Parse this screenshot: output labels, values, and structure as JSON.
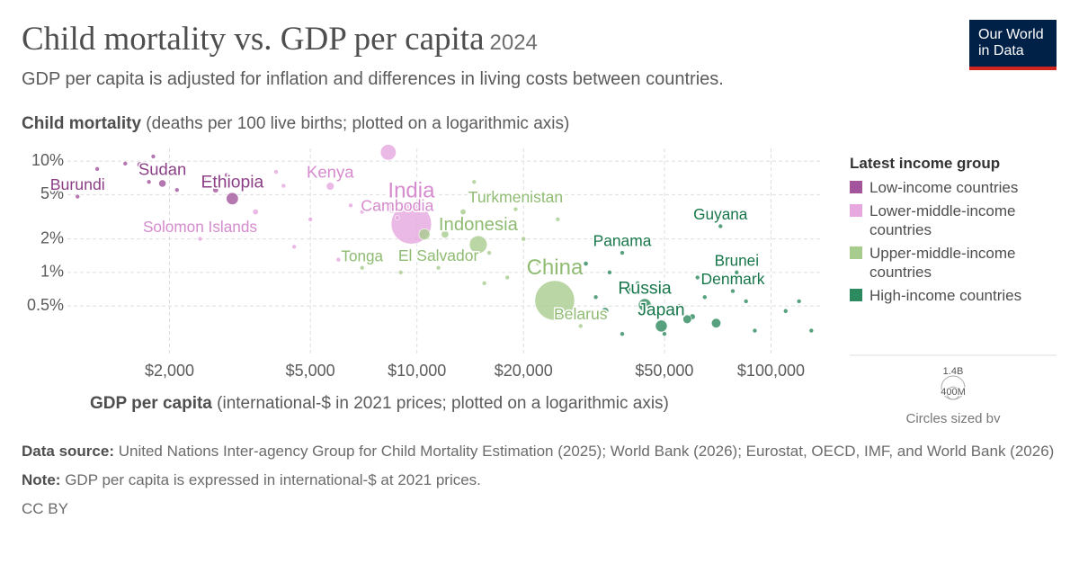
{
  "chart_data": {
    "type": "scatter",
    "title": "Child mortality vs. GDP per capita",
    "year": "2024",
    "subtitle": "GDP per capita is adjusted for inflation and differences in living costs between countries.",
    "y_label_bold": "Child mortality",
    "y_label": "(deaths per 100 live births; plotted on a logarithmic axis)",
    "x_label_bold": "GDP per capita",
    "x_label": "(international-$ in 2021 prices; plotted on a logarithmic axis)",
    "log_x": true,
    "log_y": true,
    "grid": true,
    "xlim": [
      1030,
      140000
    ],
    "ylim": [
      0.18,
      13
    ],
    "xticks": [
      {
        "value": 2000,
        "label": "$2,000"
      },
      {
        "value": 5000,
        "label": "$5,000"
      },
      {
        "value": 10000,
        "label": "$10,000"
      },
      {
        "value": 20000,
        "label": "$20,000"
      },
      {
        "value": 50000,
        "label": "$50,000"
      },
      {
        "value": 100000,
        "label": "$100,000"
      }
    ],
    "yticks": [
      {
        "value": 10,
        "label": "10%"
      },
      {
        "value": 5,
        "label": "5%"
      },
      {
        "value": 2,
        "label": "2%"
      },
      {
        "value": 1,
        "label": "1%"
      },
      {
        "value": 0.5,
        "label": "0.5%"
      }
    ],
    "legend_title": "Latest income group",
    "legend_position": "right",
    "series": [
      {
        "name": "Low-income countries",
        "color": "#a2559c",
        "label_color": "#8c3f87",
        "x": [
          1100,
          1650,
          1910,
          3010,
          1250,
          1500,
          2500,
          2900,
          3100,
          1800,
          2100,
          1750,
          2700
        ],
        "y": [
          4.8,
          9.3,
          6.3,
          4.6,
          8.5,
          9.5,
          7,
          7.5,
          6,
          11,
          5.5,
          6.5,
          5.5
        ],
        "size": [
          13,
          30,
          48,
          130,
          5,
          10,
          20,
          10,
          15,
          5,
          10,
          15,
          30
        ],
        "labels": [
          "Burundi",
          null,
          "Sudan",
          "Ethiopia",
          null,
          null,
          null,
          null,
          null,
          null,
          null,
          null,
          null
        ]
      },
      {
        "name": "Lower-middle-income countries",
        "color": "#e6a8df",
        "label_color": "#d58bcd",
        "x": [
          9640,
          5690,
          8800,
          2440,
          8300,
          6500,
          7000,
          5000,
          4000,
          4500,
          3500,
          8500,
          4200,
          6000,
          11000
        ],
        "y": [
          2.73,
          5.95,
          3.1,
          2.0,
          12,
          4,
          3.5,
          3,
          8,
          1.7,
          3.5,
          3.8,
          6,
          1.3,
          1.4
        ],
        "size": [
          1450,
          55,
          17,
          1,
          220,
          10,
          15,
          5,
          10,
          5,
          30,
          100,
          5,
          3,
          4
        ],
        "labels": [
          "India",
          "Kenya",
          "Cambodia",
          "Solomon Islands",
          null,
          null,
          null,
          null,
          null,
          null,
          null,
          null,
          null,
          null,
          null
        ]
      },
      {
        "name": "Upper-middle-income countries",
        "color": "#a7cc8d",
        "label_color": "#8fbb72",
        "x": [
          24500,
          14900,
          19000,
          7000,
          11500,
          29000,
          12000,
          13500,
          16000,
          20000,
          18000,
          22000,
          10500,
          15500,
          9000,
          14500,
          25000,
          28000,
          17000
        ],
        "y": [
          0.56,
          1.78,
          3.7,
          1.1,
          1.1,
          0.33,
          2.2,
          3.5,
          1.5,
          2.0,
          0.9,
          1.2,
          2.2,
          0.8,
          1.0,
          6.5,
          3.0,
          1.1,
          2.5
        ],
        "size": [
          1410,
          280,
          7,
          0.1,
          6,
          9,
          50,
          30,
          10,
          20,
          8,
          15,
          110,
          5,
          3,
          3,
          5,
          10,
          20
        ],
        "labels": [
          "China",
          "Indonesia",
          "Turkmenistan",
          "Tonga",
          "El Salvador",
          "Belarus",
          null,
          null,
          null,
          null,
          null,
          null,
          null,
          null,
          null,
          null,
          null,
          null,
          null
        ]
      },
      {
        "name": "High-income countries",
        "color": "#2d8a5e",
        "label_color": "#18774a",
        "x": [
          49000,
          44000,
          78000,
          80000,
          72000,
          38000,
          35000,
          40000,
          45000,
          55000,
          60000,
          65000,
          70000,
          90000,
          110000,
          130000,
          32000,
          38000,
          50000,
          42000,
          62000,
          85000,
          120000,
          30000,
          34000,
          58000
        ],
        "y": [
          0.33,
          0.51,
          0.68,
          1.0,
          2.6,
          1.5,
          1.0,
          0.7,
          0.45,
          0.5,
          0.4,
          0.6,
          0.35,
          0.3,
          0.45,
          0.3,
          0.6,
          0.28,
          0.28,
          0.8,
          0.9,
          0.55,
          0.55,
          1.2,
          0.45,
          0.38
        ],
        "size": [
          124,
          144,
          6,
          0.5,
          0.8,
          4,
          5,
          10,
          20,
          10,
          30,
          5,
          80,
          5,
          5,
          3,
          10,
          5,
          10,
          15,
          3,
          10,
          1,
          20,
          45,
          67
        ],
        "labels": [
          "Japan",
          "Russia",
          "Denmark",
          "Brunei",
          "Guyana",
          "Panama",
          null,
          null,
          null,
          null,
          null,
          null,
          null,
          null,
          null,
          null,
          null,
          null,
          null,
          null,
          null,
          null,
          null,
          null,
          null,
          null
        ]
      }
    ],
    "size_legend": [
      {
        "value": 1400,
        "label": "1.4B"
      },
      {
        "value": 400,
        "label": "400M"
      }
    ],
    "size_legend_title": "Circles sized by",
    "source_bold": "Data source:",
    "source": "United Nations Inter-agency Group for Child Mortality Estimation (2025); World Bank (2026); Eurostat, OECD, IMF, and World Bank (2026)",
    "note_bold": "Note:",
    "note": "GDP per capita is expressed in international-$ at 2021 prices.",
    "license": "CC BY",
    "logo": "Our World in Data"
  }
}
